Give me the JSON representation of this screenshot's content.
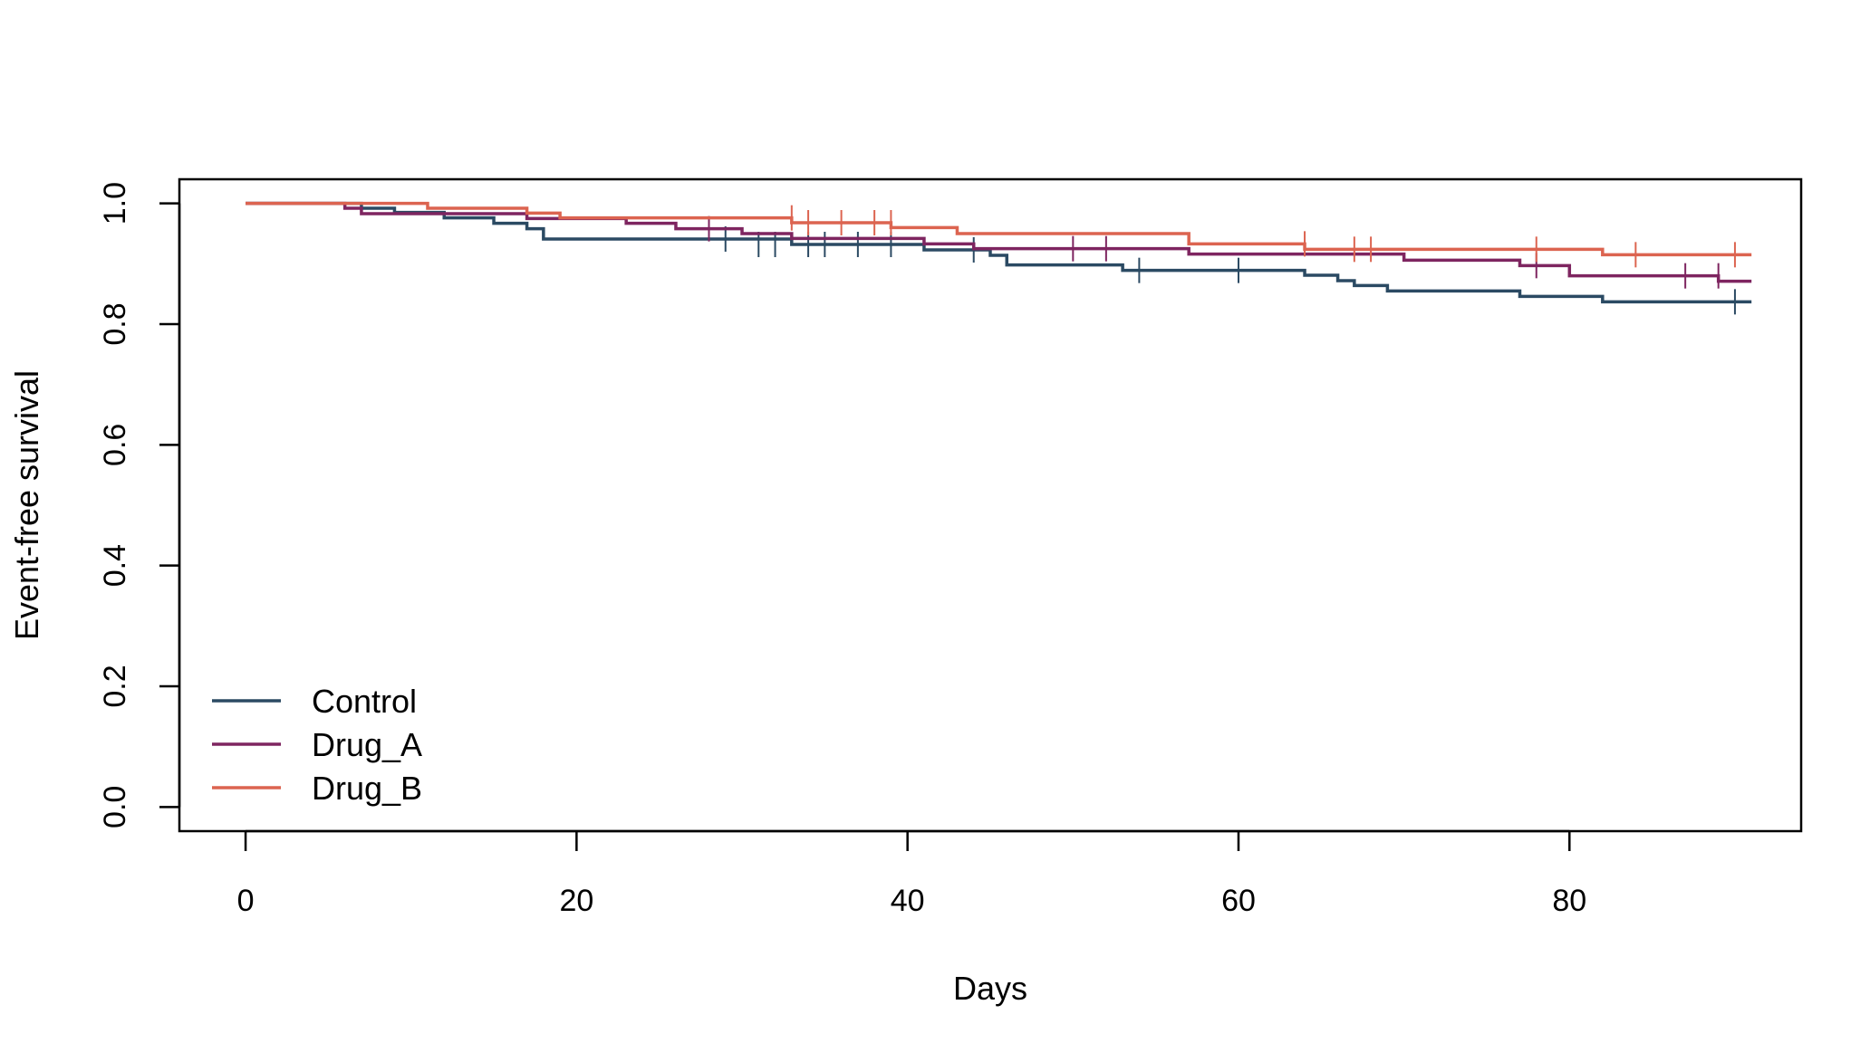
{
  "chart_data": {
    "type": "line",
    "subtype": "kaplan-meier step curves",
    "title": "",
    "xlabel": "Days",
    "ylabel": "Event-free survival",
    "xlim": [
      -4,
      94
    ],
    "ylim": [
      -0.04,
      1.04
    ],
    "x_ticks": [
      0,
      20,
      40,
      60,
      80
    ],
    "x_tick_labels": [
      "0",
      "20",
      "40",
      "60",
      "80"
    ],
    "y_ticks": [
      0.0,
      0.2,
      0.4,
      0.6,
      0.8,
      1.0
    ],
    "y_tick_labels": [
      "0.0",
      "0.2",
      "0.4",
      "0.6",
      "0.8",
      "1.0"
    ],
    "grid": false,
    "legend_position": "bottom-left",
    "series": [
      {
        "name": "Control",
        "color": "#2b4a63",
        "steps": [
          [
            0,
            1.0
          ],
          [
            7,
            0.992
          ],
          [
            9,
            0.985
          ],
          [
            12,
            0.976
          ],
          [
            15,
            0.967
          ],
          [
            17,
            0.958
          ],
          [
            18,
            0.941
          ],
          [
            29,
            0.941
          ],
          [
            33,
            0.932
          ],
          [
            41,
            0.923
          ],
          [
            45,
            0.914
          ],
          [
            46,
            0.898
          ],
          [
            53,
            0.889
          ],
          [
            64,
            0.881
          ],
          [
            66,
            0.872
          ],
          [
            67,
            0.864
          ],
          [
            69,
            0.855
          ],
          [
            77,
            0.846
          ],
          [
            82,
            0.837
          ],
          [
            91,
            0.837
          ]
        ],
        "censored": [
          [
            29,
            0.941
          ],
          [
            31,
            0.932
          ],
          [
            32,
            0.932
          ],
          [
            34,
            0.932
          ],
          [
            35,
            0.932
          ],
          [
            37,
            0.932
          ],
          [
            39,
            0.932
          ],
          [
            44,
            0.923
          ],
          [
            54,
            0.889
          ],
          [
            60,
            0.889
          ],
          [
            90,
            0.837
          ]
        ]
      },
      {
        "name": "Drug_A",
        "color": "#7e2560",
        "steps": [
          [
            0,
            1.0
          ],
          [
            6,
            0.992
          ],
          [
            7,
            0.983
          ],
          [
            17,
            0.975
          ],
          [
            23,
            0.967
          ],
          [
            26,
            0.958
          ],
          [
            30,
            0.95
          ],
          [
            33,
            0.942
          ],
          [
            41,
            0.933
          ],
          [
            44,
            0.925
          ],
          [
            57,
            0.916
          ],
          [
            70,
            0.906
          ],
          [
            77,
            0.897
          ],
          [
            80,
            0.88
          ],
          [
            89,
            0.871
          ],
          [
            91,
            0.871
          ]
        ],
        "censored": [
          [
            28,
            0.958
          ],
          [
            50,
            0.925
          ],
          [
            52,
            0.925
          ],
          [
            78,
            0.897
          ],
          [
            87,
            0.88
          ],
          [
            89,
            0.88
          ]
        ]
      },
      {
        "name": "Drug_B",
        "color": "#dc6450",
        "steps": [
          [
            0,
            1.0
          ],
          [
            11,
            0.992
          ],
          [
            17,
            0.984
          ],
          [
            19,
            0.976
          ],
          [
            33,
            0.968
          ],
          [
            39,
            0.96
          ],
          [
            43,
            0.95
          ],
          [
            57,
            0.933
          ],
          [
            64,
            0.924
          ],
          [
            82,
            0.915
          ],
          [
            91,
            0.915
          ]
        ],
        "censored": [
          [
            33,
            0.976
          ],
          [
            34,
            0.968
          ],
          [
            36,
            0.968
          ],
          [
            38,
            0.968
          ],
          [
            39,
            0.968
          ],
          [
            64,
            0.933
          ],
          [
            67,
            0.924
          ],
          [
            68,
            0.924
          ],
          [
            78,
            0.924
          ],
          [
            84,
            0.915
          ],
          [
            90,
            0.915
          ]
        ]
      }
    ]
  }
}
